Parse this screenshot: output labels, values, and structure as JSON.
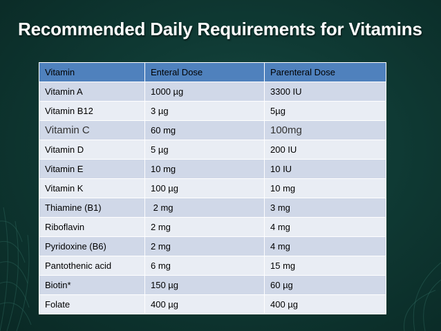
{
  "slide": {
    "title": "Recommended Daily Requirements for Vitamins"
  },
  "table": {
    "header": [
      "Vitamin",
      "Enteral Dose",
      "Parenteral Dose"
    ],
    "rows": [
      [
        "Vitamin A",
        "1000 µg",
        "3300 IU"
      ],
      [
        "Vitamin B12",
        "3 µg",
        "5µg"
      ],
      [
        "Vitamin C",
        "60 mg",
        "100mg"
      ],
      [
        "Vitamin D",
        "5 µg",
        "200 IU"
      ],
      [
        "Vitamin E",
        "10 mg",
        "10 IU"
      ],
      [
        "Vitamin K",
        "100 µg",
        "10 mg"
      ],
      [
        "Thiamine (B1)",
        " 2 mg",
        "3 mg"
      ],
      [
        "Riboflavin",
        "2 mg",
        "4 mg"
      ],
      [
        "Pyridoxine (B6)",
        "2 mg",
        "4 mg"
      ],
      [
        "Pantothenic acid",
        "6 mg",
        "15 mg"
      ],
      [
        "Biotin*",
        "150 µg",
        "60 µg"
      ],
      [
        "Folate",
        "400 µg",
        "400 µg"
      ]
    ]
  },
  "colors": {
    "background": "#0f3a34",
    "header_row": "#4f81bd",
    "row_dark": "#d0d8e8",
    "row_light": "#e9edf4",
    "title_text": "#ffffff"
  }
}
